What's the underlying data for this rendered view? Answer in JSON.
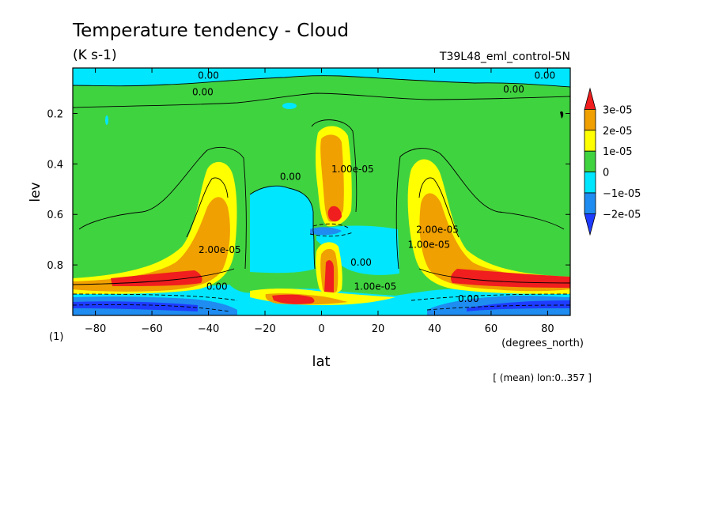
{
  "header": {
    "title": "Temperature tendency - Cloud",
    "units": "(K s-1)",
    "experiment": "T39L48_eml_control-5N"
  },
  "footer": {
    "note": "[ (mean) lon:0..357 ]",
    "index": "(1)"
  },
  "colors": {
    "c_m2": "#1e8cf0",
    "c_m1": "#00e6ff",
    "c_0": "#40d340",
    "c_1": "#ffff00",
    "c_2": "#f0a000",
    "c_3": "#f01e1e",
    "deep": "#1e3cff"
  },
  "chart_data": {
    "type": "heatmap",
    "title": "Temperature tendency - Cloud",
    "subtitle": "(K s-1)",
    "xlabel": "lat",
    "xunit": "(degrees_north)",
    "ylabel": "lev",
    "xlim": [
      -88,
      88
    ],
    "ylim": [
      0.02,
      1.0
    ],
    "y_inverted": true,
    "x_ticks": [
      -80,
      -60,
      -40,
      -20,
      0,
      20,
      40,
      60,
      80
    ],
    "x_tick_labels": [
      "−80",
      "−60",
      "−40",
      "−20",
      "0",
      "20",
      "40",
      "60",
      "80"
    ],
    "y_ticks": [
      0.2,
      0.4,
      0.6,
      0.8
    ],
    "y_tick_labels": [
      "0.2",
      "0.4",
      "0.6",
      "0.8"
    ],
    "colorbar": {
      "placement": "right",
      "levels": [
        "3e-05",
        "2e-05",
        "1e-05",
        "0",
        "−1e-05",
        "−2e-05"
      ],
      "bins": [
        {
          "range": ">3e-05",
          "color": "#f01e1e"
        },
        {
          "range": "2e-05..3e-05",
          "color": "#f0a000"
        },
        {
          "range": "1e-05..2e-05",
          "color": "#ffff00"
        },
        {
          "range": "0..1e-05",
          "color": "#40d340"
        },
        {
          "range": "-1e-05..0",
          "color": "#00e6ff"
        },
        {
          "range": "-2e-05..-1e-05",
          "color": "#1e8cf0"
        },
        {
          "range": "<-2e-05",
          "color": "#1e3cff"
        }
      ]
    },
    "contour_labels": [
      {
        "text": "0.00",
        "lat": -40,
        "lev": 0.05
      },
      {
        "text": "0.00",
        "lat": 79,
        "lev": 0.05
      },
      {
        "text": "0.00",
        "lat": -42,
        "lev": 0.115
      },
      {
        "text": "0.00",
        "lat": 68,
        "lev": 0.105
      },
      {
        "text": "0.00",
        "lat": -11,
        "lev": 0.45
      },
      {
        "text": "1.00e-05",
        "lat": 11,
        "lev": 0.42
      },
      {
        "text": "2.00e-05",
        "lat": 41,
        "lev": 0.66
      },
      {
        "text": "1.00e-05",
        "lat": 38,
        "lev": 0.72
      },
      {
        "text": "2.00e-05",
        "lat": -36,
        "lev": 0.74
      },
      {
        "text": "0.00",
        "lat": 14,
        "lev": 0.79
      },
      {
        "text": "1.00e-05",
        "lat": 19,
        "lev": 0.885
      },
      {
        "text": "0.00",
        "lat": -37,
        "lev": 0.885
      },
      {
        "text": "0.00",
        "lat": 52,
        "lev": 0.935
      }
    ]
  }
}
